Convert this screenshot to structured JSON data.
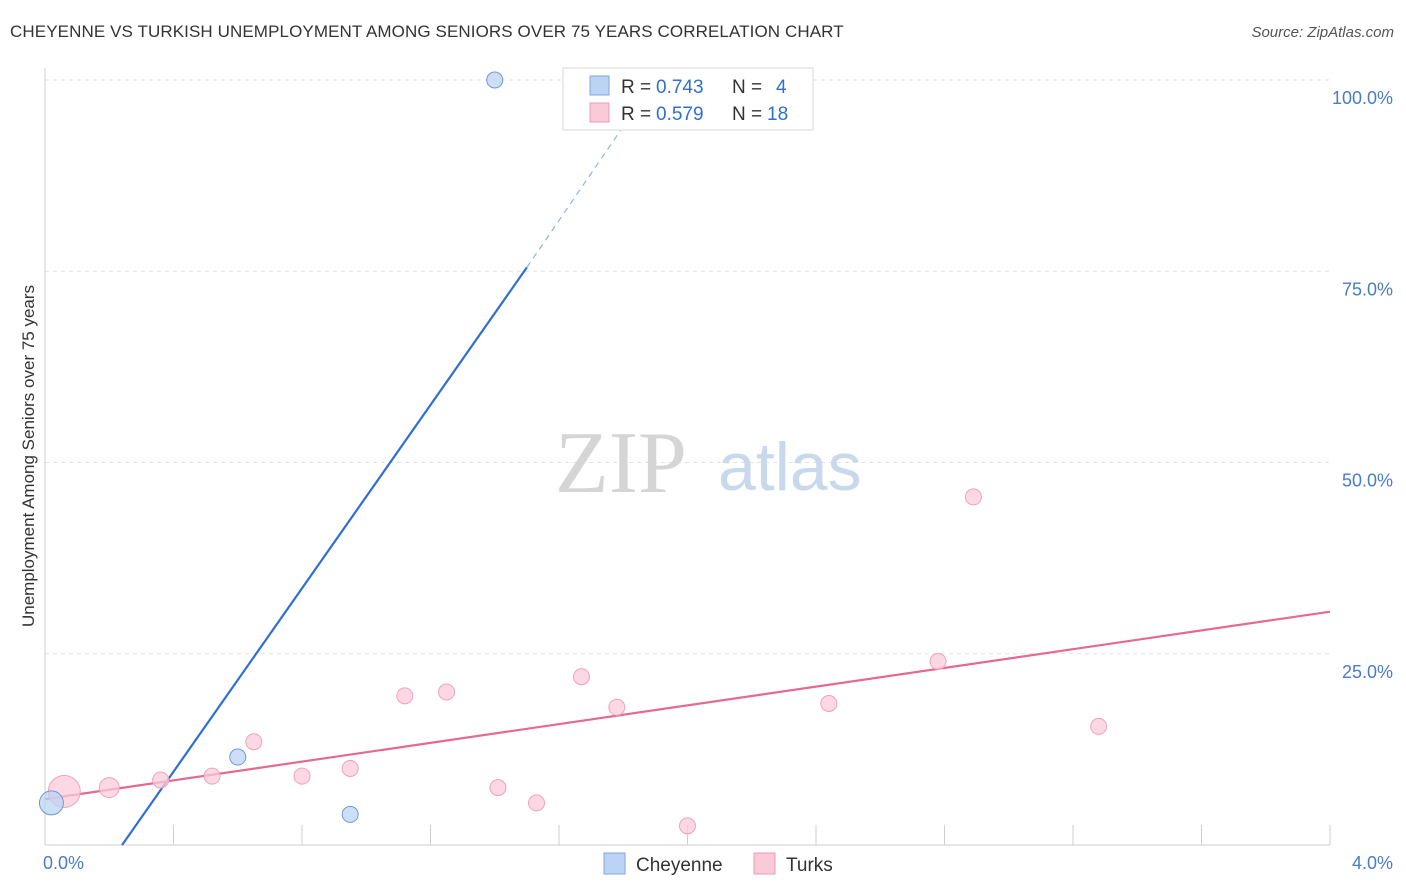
{
  "title": "CHEYENNE VS TURKISH UNEMPLOYMENT AMONG SENIORS OVER 75 YEARS CORRELATION CHART",
  "source": "Source: ZipAtlas.com",
  "watermark": {
    "zip": "ZIP",
    "atlas": "atlas"
  },
  "colors": {
    "cheyenne": "#a9c8f0",
    "cheyenne_line": "#2f6fd0",
    "turks": "#f7b8cb",
    "turks_line": "#e46a93",
    "tick": "#4a7cc4"
  },
  "legend": {
    "rows": [
      {
        "r_label": "R =",
        "r_value": "0.743",
        "n_label": "N =",
        "n_value": "4"
      },
      {
        "r_label": "R =",
        "r_value": "0.579",
        "n_label": "N =",
        "n_value": "18"
      }
    ]
  },
  "chart_data": {
    "type": "scatter",
    "title": "CHEYENNE VS TURKISH UNEMPLOYMENT AMONG SENIORS OVER 75 YEARS CORRELATION CHART",
    "xlabel": "",
    "ylabel": "Unemployment Among Seniors over 75 years",
    "xlim": [
      0,
      4.0
    ],
    "ylim": [
      0,
      100
    ],
    "x_tick_labels": [
      "0.0%",
      "4.0%"
    ],
    "y_tick_labels": [
      "100.0%",
      "75.0%",
      "50.0%",
      "25.0%"
    ],
    "y_ticks": [
      100,
      75,
      50,
      25
    ],
    "series": [
      {
        "name": "Cheyenne",
        "r": 0.743,
        "n": 4,
        "points": [
          {
            "x": 0.02,
            "y": 5.5,
            "size": 12
          },
          {
            "x": 0.6,
            "y": 11.5,
            "size": 8
          },
          {
            "x": 0.95,
            "y": 4.0,
            "size": 8
          },
          {
            "x": 1.4,
            "y": 100.0,
            "size": 8
          }
        ],
        "trend": {
          "x0": 0.24,
          "y0": 0,
          "x1": 1.5,
          "y1": 75.5,
          "dash_to": {
            "x": 1.85,
            "y": 97
          }
        }
      },
      {
        "name": "Turks",
        "r": 0.579,
        "n": 18,
        "points": [
          {
            "x": 0.06,
            "y": 7.0,
            "size": 16
          },
          {
            "x": 0.2,
            "y": 7.5,
            "size": 10
          },
          {
            "x": 0.36,
            "y": 8.5,
            "size": 8
          },
          {
            "x": 0.52,
            "y": 9.0,
            "size": 8
          },
          {
            "x": 0.65,
            "y": 13.5,
            "size": 8
          },
          {
            "x": 0.8,
            "y": 9.0,
            "size": 8
          },
          {
            "x": 0.95,
            "y": 10.0,
            "size": 8
          },
          {
            "x": 1.12,
            "y": 19.5,
            "size": 8
          },
          {
            "x": 1.25,
            "y": 20.0,
            "size": 8
          },
          {
            "x": 1.41,
            "y": 7.5,
            "size": 8
          },
          {
            "x": 1.53,
            "y": 5.5,
            "size": 8
          },
          {
            "x": 1.67,
            "y": 22.0,
            "size": 8
          },
          {
            "x": 1.78,
            "y": 18.0,
            "size": 8
          },
          {
            "x": 2.0,
            "y": 2.5,
            "size": 8
          },
          {
            "x": 2.44,
            "y": 18.5,
            "size": 8
          },
          {
            "x": 2.78,
            "y": 24.0,
            "size": 8
          },
          {
            "x": 2.89,
            "y": 45.5,
            "size": 8
          },
          {
            "x": 3.28,
            "y": 15.5,
            "size": 8
          }
        ],
        "trend": {
          "x0": 0,
          "y0": 6.0,
          "x1": 4.0,
          "y1": 30.5
        }
      }
    ]
  }
}
